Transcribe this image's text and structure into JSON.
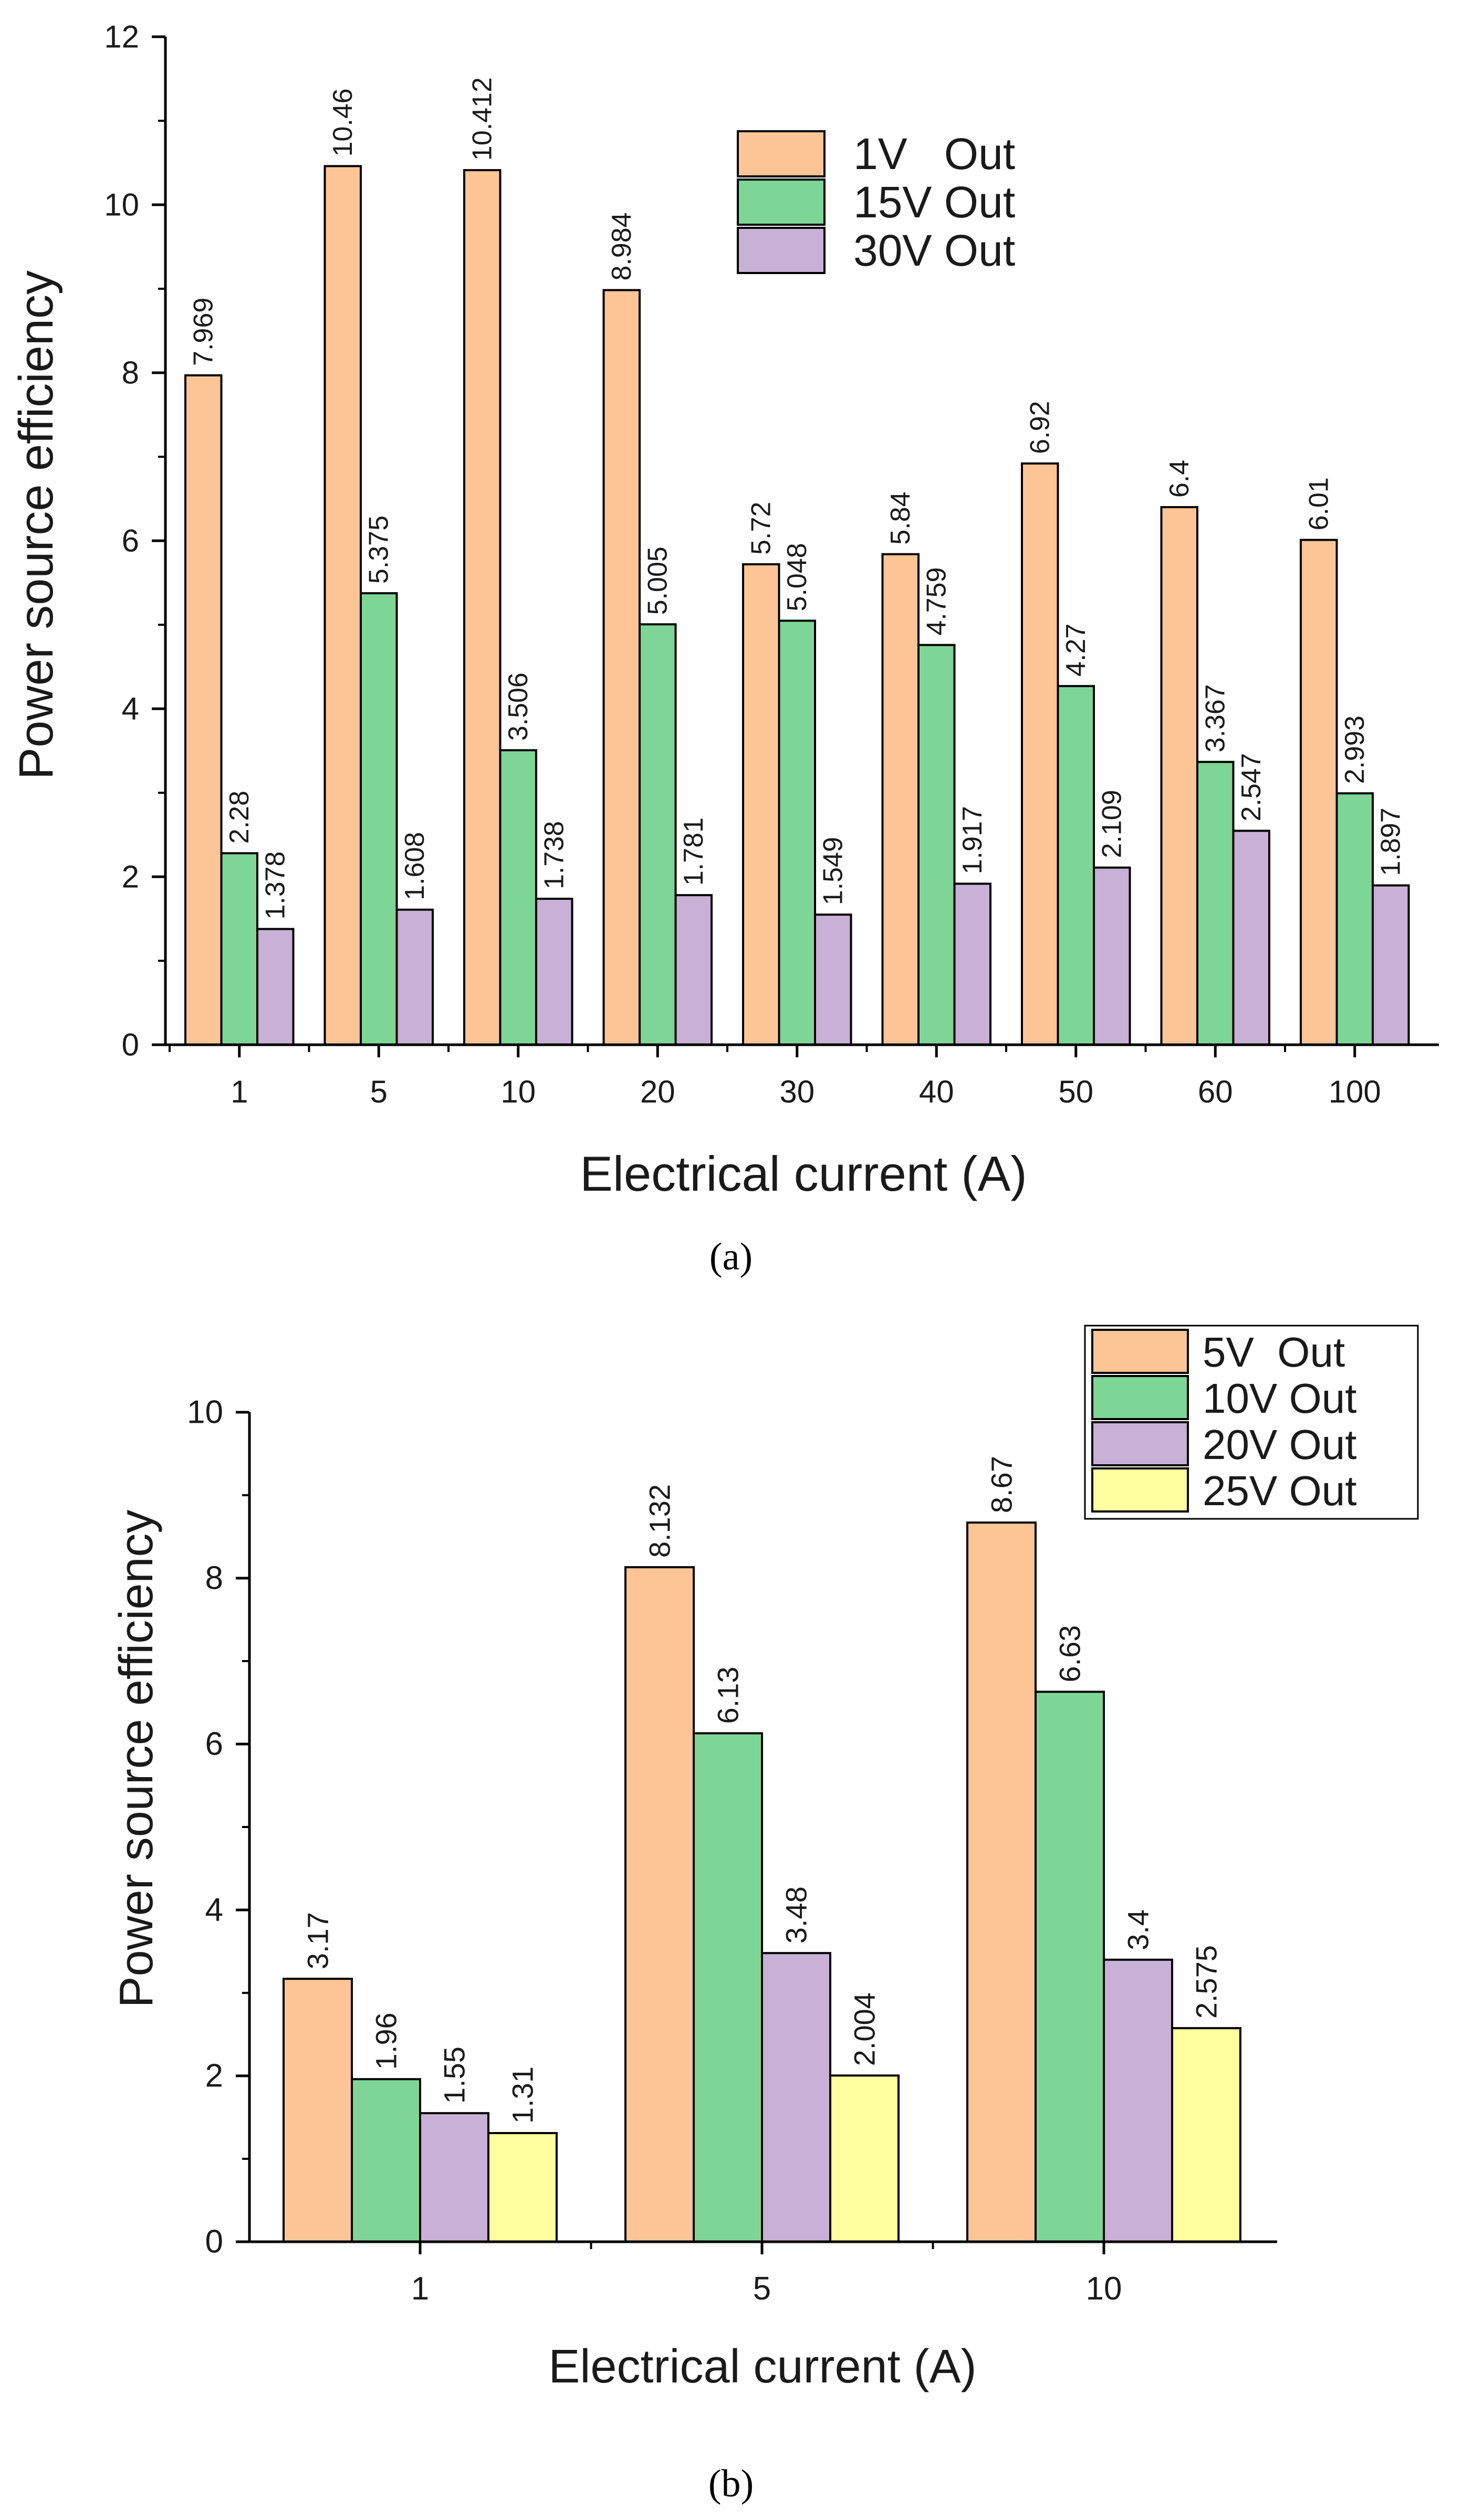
{
  "figure": {
    "panels": [
      "a",
      "b"
    ],
    "caption_a": "(a)",
    "caption_b": "(b)"
  },
  "chart_data": [
    {
      "id": "a",
      "type": "bar",
      "xlabel": "Electrical current (A)",
      "ylabel": "Power source efficiency",
      "categories": [
        "1",
        "5",
        "10",
        "20",
        "30",
        "40",
        "50",
        "60",
        "100"
      ],
      "ylim": [
        0,
        12
      ],
      "yticks": [
        0,
        2,
        4,
        6,
        8,
        10,
        12
      ],
      "grid": false,
      "legend_position": "top-right",
      "series": [
        {
          "name": "1V   Out",
          "color": "#FDC596",
          "values": [
            7.969,
            10.46,
            10.412,
            8.984,
            5.72,
            5.84,
            6.92,
            6.4,
            6.01
          ],
          "labels": [
            "7.969",
            "10.46",
            "10.412",
            "8.984",
            "5.72",
            "5.84",
            "6.92",
            "6.4",
            "6.01"
          ]
        },
        {
          "name": "15V Out",
          "color": "#7ED696",
          "values": [
            2.28,
            5.375,
            3.506,
            5.005,
            5.048,
            4.759,
            4.27,
            3.367,
            2.993
          ],
          "labels": [
            "2.28",
            "5.375",
            "3.506",
            "5.005",
            "5.048",
            "4.759",
            "4.27",
            "3.367",
            "2.993"
          ]
        },
        {
          "name": "30V Out",
          "color": "#C9B0D6",
          "values": [
            1.378,
            1.608,
            1.738,
            1.781,
            1.549,
            1.917,
            2.109,
            2.547,
            1.897
          ],
          "labels": [
            "1.378",
            "1.608",
            "1.738",
            "1.781",
            "1.549",
            "1.917",
            "2.109",
            "2.547",
            "1.897"
          ]
        }
      ]
    },
    {
      "id": "b",
      "type": "bar",
      "xlabel": "Electrical current (A)",
      "ylabel": "Power source efficiency",
      "categories": [
        "1",
        "5",
        "10"
      ],
      "ylim": [
        0,
        10
      ],
      "yticks": [
        0,
        2,
        4,
        6,
        8,
        10
      ],
      "grid": false,
      "legend_position": "top-right",
      "series": [
        {
          "name": "5V  Out",
          "color": "#FDC596",
          "values": [
            3.17,
            8.132,
            8.67
          ],
          "labels": [
            "3.17",
            "8.132",
            "8.67"
          ]
        },
        {
          "name": "10V Out",
          "color": "#7ED696",
          "values": [
            1.96,
            6.13,
            6.63
          ],
          "labels": [
            "1.96",
            "6.13",
            "6.63"
          ]
        },
        {
          "name": "20V Out",
          "color": "#C9B0D6",
          "values": [
            1.55,
            3.48,
            3.4
          ],
          "labels": [
            "1.55",
            "3.48",
            "3.4"
          ]
        },
        {
          "name": "25V Out",
          "color": "#FEFE9E",
          "values": [
            1.31,
            2.004,
            2.575
          ],
          "labels": [
            "1.31",
            "2.004",
            "2.575"
          ]
        }
      ]
    }
  ]
}
